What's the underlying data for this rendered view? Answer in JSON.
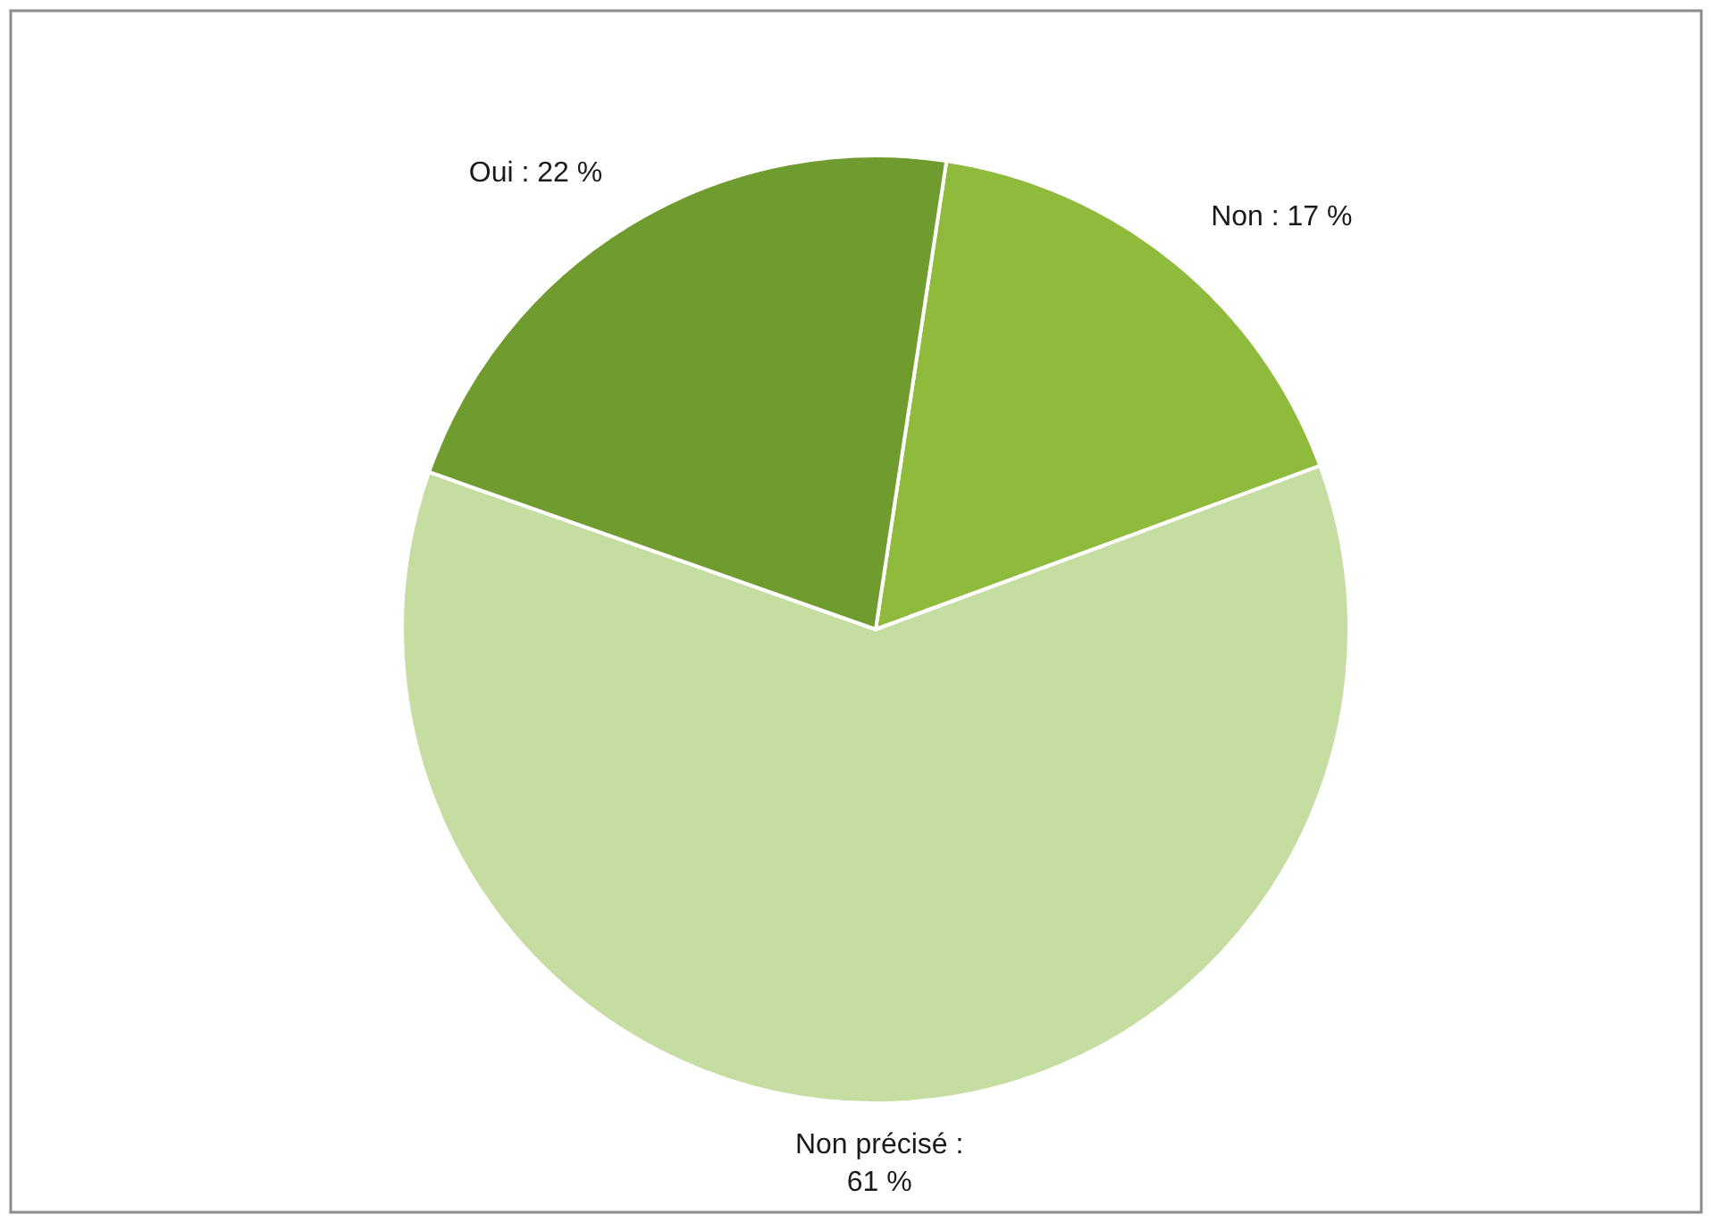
{
  "chart_data": {
    "type": "pie",
    "categories": [
      "Non : 17 %",
      "Non précisé : 61 %",
      "Oui : 22 %"
    ],
    "values": [
      17,
      61,
      22
    ],
    "colors": [
      "#8fba3c",
      "#c6dda2",
      "#6f9b2f"
    ]
  }
}
